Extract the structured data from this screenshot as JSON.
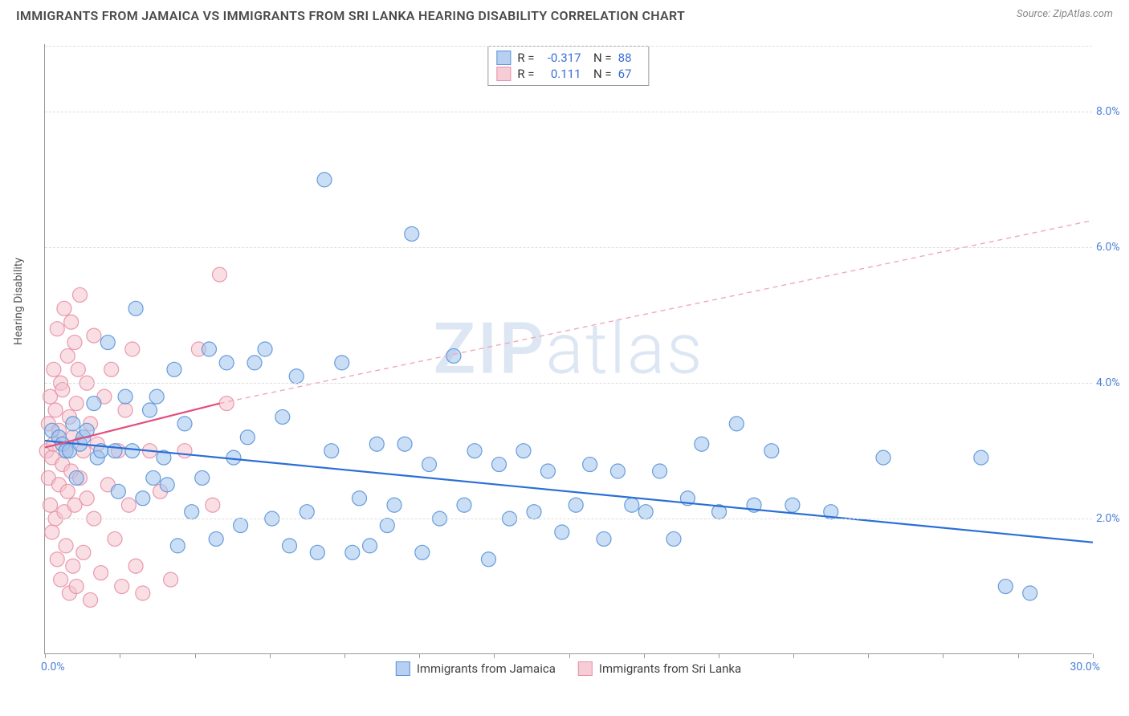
{
  "title": "IMMIGRANTS FROM JAMAICA VS IMMIGRANTS FROM SRI LANKA HEARING DISABILITY CORRELATION CHART",
  "source": "Source: ZipAtlas.com",
  "ylabel": "Hearing Disability",
  "watermark_left": "ZIP",
  "watermark_right": "atlas",
  "chart": {
    "type": "scatter",
    "xlim": [
      0,
      30
    ],
    "ylim": [
      0,
      9
    ],
    "x_start_label": "0.0%",
    "x_end_label": "30.0%",
    "y_ticks": [
      2.0,
      4.0,
      6.0,
      8.0
    ],
    "y_tick_labels": [
      "2.0%",
      "4.0%",
      "6.0%",
      "8.0%"
    ],
    "x_tick_positions": [
      0,
      2.14,
      4.29,
      6.43,
      8.57,
      10.71,
      12.86,
      15.0,
      17.14,
      19.29,
      21.43,
      23.57,
      25.71,
      27.86,
      30.0
    ],
    "grid_color": "#dddddd",
    "axis_color": "#999999",
    "background": "#ffffff",
    "marker_radius": 9,
    "marker_opacity": 0.55,
    "series": [
      {
        "name": "Immigrants from Jamaica",
        "color_fill": "#9ec2ec",
        "color_stroke": "#5a93d8",
        "swatch_fill": "#b7cff0",
        "swatch_stroke": "#5a93d8",
        "R": "-0.317",
        "N": "88",
        "trend": {
          "x1": 0,
          "y1": 3.15,
          "x2": 30,
          "y2": 1.65,
          "stroke": "#2a6fd6",
          "width": 2.2,
          "dash": ""
        },
        "points": [
          [
            0.2,
            3.3
          ],
          [
            0.4,
            3.2
          ],
          [
            0.5,
            3.1
          ],
          [
            0.6,
            3.0
          ],
          [
            0.7,
            3.0
          ],
          [
            0.8,
            3.4
          ],
          [
            0.9,
            2.6
          ],
          [
            1.0,
            3.1
          ],
          [
            1.1,
            3.2
          ],
          [
            1.2,
            3.3
          ],
          [
            1.4,
            3.7
          ],
          [
            1.5,
            2.9
          ],
          [
            1.6,
            3.0
          ],
          [
            1.8,
            4.6
          ],
          [
            2.0,
            3.0
          ],
          [
            2.1,
            2.4
          ],
          [
            2.3,
            3.8
          ],
          [
            2.5,
            3.0
          ],
          [
            2.6,
            5.1
          ],
          [
            2.8,
            2.3
          ],
          [
            3.0,
            3.6
          ],
          [
            3.1,
            2.6
          ],
          [
            3.2,
            3.8
          ],
          [
            3.4,
            2.9
          ],
          [
            3.5,
            2.5
          ],
          [
            3.7,
            4.2
          ],
          [
            3.8,
            1.6
          ],
          [
            4.0,
            3.4
          ],
          [
            4.2,
            2.1
          ],
          [
            4.5,
            2.6
          ],
          [
            4.7,
            4.5
          ],
          [
            4.9,
            1.7
          ],
          [
            5.2,
            4.3
          ],
          [
            5.4,
            2.9
          ],
          [
            5.6,
            1.9
          ],
          [
            5.8,
            3.2
          ],
          [
            6.0,
            4.3
          ],
          [
            6.3,
            4.5
          ],
          [
            6.5,
            2.0
          ],
          [
            6.8,
            3.5
          ],
          [
            7.0,
            1.6
          ],
          [
            7.2,
            4.1
          ],
          [
            7.5,
            2.1
          ],
          [
            7.8,
            1.5
          ],
          [
            8.0,
            7.0
          ],
          [
            8.2,
            3.0
          ],
          [
            8.5,
            4.3
          ],
          [
            8.8,
            1.5
          ],
          [
            9.0,
            2.3
          ],
          [
            9.3,
            1.6
          ],
          [
            9.5,
            3.1
          ],
          [
            9.8,
            1.9
          ],
          [
            10.0,
            2.2
          ],
          [
            10.3,
            3.1
          ],
          [
            10.5,
            6.2
          ],
          [
            10.8,
            1.5
          ],
          [
            11.0,
            2.8
          ],
          [
            11.3,
            2.0
          ],
          [
            11.7,
            4.4
          ],
          [
            12.0,
            2.2
          ],
          [
            12.3,
            3.0
          ],
          [
            12.7,
            1.4
          ],
          [
            13.0,
            2.8
          ],
          [
            13.3,
            2.0
          ],
          [
            13.7,
            3.0
          ],
          [
            14.0,
            2.1
          ],
          [
            14.4,
            2.7
          ],
          [
            14.8,
            1.8
          ],
          [
            15.2,
            2.2
          ],
          [
            15.6,
            2.8
          ],
          [
            16.0,
            1.7
          ],
          [
            16.4,
            2.7
          ],
          [
            16.8,
            2.2
          ],
          [
            17.2,
            2.1
          ],
          [
            17.6,
            2.7
          ],
          [
            18.0,
            1.7
          ],
          [
            18.4,
            2.3
          ],
          [
            18.8,
            3.1
          ],
          [
            19.3,
            2.1
          ],
          [
            19.8,
            3.4
          ],
          [
            20.3,
            2.2
          ],
          [
            20.8,
            3.0
          ],
          [
            21.4,
            2.2
          ],
          [
            22.5,
            2.1
          ],
          [
            24.0,
            2.9
          ],
          [
            26.8,
            2.9
          ],
          [
            27.5,
            1.0
          ],
          [
            28.2,
            0.9
          ]
        ]
      },
      {
        "name": "Immigrants from Sri Lanka",
        "color_fill": "#f4c2ce",
        "color_stroke": "#e88fa5",
        "swatch_fill": "#f6cdd6",
        "swatch_stroke": "#e88fa5",
        "R": "0.111",
        "N": "67",
        "trend_solid": {
          "x1": 0,
          "y1": 3.05,
          "x2": 5.0,
          "y2": 3.7,
          "stroke": "#e54d7b",
          "width": 2.2
        },
        "trend_dash": {
          "x1": 5.0,
          "y1": 3.7,
          "x2": 30,
          "y2": 6.4,
          "stroke": "#f0a8b9",
          "width": 1.4,
          "dash": "6,5"
        },
        "points": [
          [
            0.05,
            3.0
          ],
          [
            0.1,
            2.6
          ],
          [
            0.1,
            3.4
          ],
          [
            0.15,
            2.2
          ],
          [
            0.15,
            3.8
          ],
          [
            0.2,
            2.9
          ],
          [
            0.2,
            1.8
          ],
          [
            0.25,
            4.2
          ],
          [
            0.25,
            3.1
          ],
          [
            0.3,
            2.0
          ],
          [
            0.3,
            3.6
          ],
          [
            0.35,
            1.4
          ],
          [
            0.35,
            4.8
          ],
          [
            0.4,
            2.5
          ],
          [
            0.4,
            3.3
          ],
          [
            0.45,
            1.1
          ],
          [
            0.45,
            4.0
          ],
          [
            0.5,
            2.8
          ],
          [
            0.5,
            3.9
          ],
          [
            0.55,
            2.1
          ],
          [
            0.55,
            5.1
          ],
          [
            0.6,
            3.0
          ],
          [
            0.6,
            1.6
          ],
          [
            0.65,
            4.4
          ],
          [
            0.65,
            2.4
          ],
          [
            0.7,
            3.5
          ],
          [
            0.7,
            0.9
          ],
          [
            0.75,
            4.9
          ],
          [
            0.75,
            2.7
          ],
          [
            0.8,
            3.2
          ],
          [
            0.8,
            1.3
          ],
          [
            0.85,
            4.6
          ],
          [
            0.85,
            2.2
          ],
          [
            0.9,
            3.7
          ],
          [
            0.9,
            1.0
          ],
          [
            0.95,
            4.2
          ],
          [
            1.0,
            2.6
          ],
          [
            1.0,
            5.3
          ],
          [
            1.1,
            3.0
          ],
          [
            1.1,
            1.5
          ],
          [
            1.2,
            4.0
          ],
          [
            1.2,
            2.3
          ],
          [
            1.3,
            3.4
          ],
          [
            1.3,
            0.8
          ],
          [
            1.4,
            4.7
          ],
          [
            1.4,
            2.0
          ],
          [
            1.5,
            3.1
          ],
          [
            1.6,
            1.2
          ],
          [
            1.7,
            3.8
          ],
          [
            1.8,
            2.5
          ],
          [
            1.9,
            4.2
          ],
          [
            2.0,
            1.7
          ],
          [
            2.1,
            3.0
          ],
          [
            2.2,
            1.0
          ],
          [
            2.3,
            3.6
          ],
          [
            2.4,
            2.2
          ],
          [
            2.5,
            4.5
          ],
          [
            2.8,
            0.9
          ],
          [
            3.0,
            3.0
          ],
          [
            3.3,
            2.4
          ],
          [
            3.6,
            1.1
          ],
          [
            4.0,
            3.0
          ],
          [
            4.4,
            4.5
          ],
          [
            4.8,
            2.2
          ],
          [
            5.2,
            3.7
          ],
          [
            5.0,
            5.6
          ],
          [
            2.6,
            1.3
          ]
        ]
      }
    ]
  },
  "legend": {
    "items": [
      {
        "label": "Immigrants from Jamaica",
        "fill": "#b7cff0",
        "stroke": "#5a93d8"
      },
      {
        "label": "Immigrants from Sri Lanka",
        "fill": "#f6cdd6",
        "stroke": "#e88fa5"
      }
    ]
  }
}
